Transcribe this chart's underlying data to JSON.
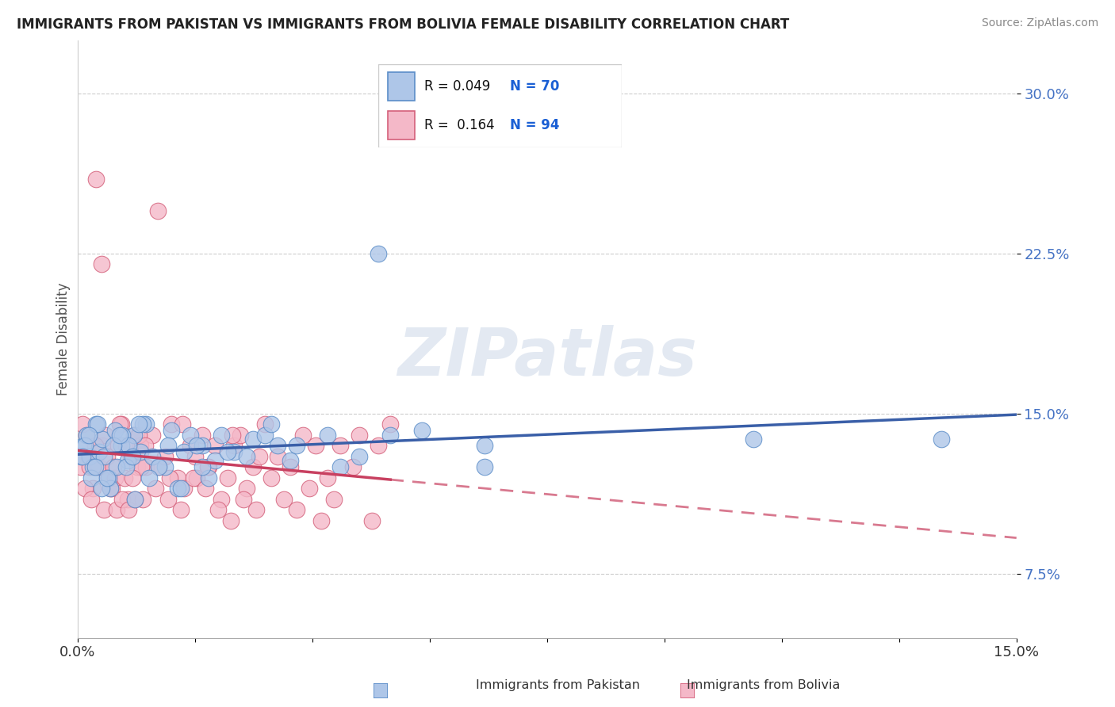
{
  "title": "IMMIGRANTS FROM PAKISTAN VS IMMIGRANTS FROM BOLIVIA FEMALE DISABILITY CORRELATION CHART",
  "source": "Source: ZipAtlas.com",
  "ylabel": "Female Disability",
  "y_ticks": [
    7.5,
    15.0,
    22.5,
    30.0
  ],
  "xlim": [
    0.0,
    15.0
  ],
  "ylim": [
    4.5,
    32.5
  ],
  "legend_label_1": "Immigrants from Pakistan",
  "legend_label_2": "Immigrants from Bolivia",
  "R1": 0.049,
  "N1": 70,
  "R2": 0.164,
  "N2": 94,
  "color_pakistan": "#aec6e8",
  "color_bolivia": "#f4b8c8",
  "edge_color_pakistan": "#5b8dc8",
  "edge_color_bolivia": "#d4607a",
  "trend_color_pakistan": "#3a5fa8",
  "trend_color_bolivia": "#c84060",
  "watermark": "ZIPatlas",
  "pakistan_x": [
    0.05,
    0.1,
    0.15,
    0.2,
    0.25,
    0.3,
    0.35,
    0.4,
    0.5,
    0.6,
    0.7,
    0.8,
    0.9,
    1.0,
    1.1,
    1.2,
    1.4,
    1.5,
    1.6,
    1.8,
    2.0,
    2.2,
    2.5,
    2.8,
    3.0,
    3.5,
    4.0,
    4.5,
    5.5,
    6.5,
    0.12,
    0.22,
    0.32,
    0.42,
    0.52,
    0.62,
    0.72,
    0.82,
    0.92,
    1.05,
    1.3,
    1.7,
    1.9,
    2.1,
    2.3,
    2.7,
    3.1,
    3.4,
    4.2,
    5.0,
    0.08,
    0.18,
    0.28,
    0.38,
    0.48,
    0.58,
    0.68,
    0.78,
    0.88,
    0.98,
    1.15,
    1.45,
    1.65,
    2.0,
    2.4,
    3.2,
    10.8,
    6.5,
    13.8,
    4.8
  ],
  "pakistan_y": [
    13.0,
    13.5,
    14.0,
    13.0,
    12.5,
    14.5,
    13.2,
    13.8,
    12.0,
    14.2,
    13.5,
    12.8,
    14.0,
    13.2,
    14.5,
    13.0,
    12.5,
    14.2,
    11.5,
    14.0,
    13.5,
    12.8,
    13.2,
    13.8,
    14.0,
    13.5,
    14.0,
    13.0,
    14.2,
    12.5,
    13.5,
    12.0,
    14.5,
    13.0,
    11.5,
    12.5,
    14.0,
    13.5,
    11.0,
    14.5,
    12.5,
    13.2,
    13.5,
    12.0,
    14.0,
    13.0,
    14.5,
    12.8,
    12.5,
    14.0,
    13.0,
    14.0,
    12.5,
    11.5,
    12.0,
    13.5,
    14.0,
    12.5,
    13.0,
    14.5,
    12.0,
    13.5,
    11.5,
    12.5,
    13.2,
    13.5,
    13.8,
    13.5,
    13.8,
    22.5
  ],
  "bolivia_x": [
    0.05,
    0.1,
    0.15,
    0.2,
    0.25,
    0.3,
    0.35,
    0.4,
    0.45,
    0.5,
    0.55,
    0.6,
    0.65,
    0.7,
    0.75,
    0.8,
    0.85,
    0.9,
    0.95,
    1.0,
    1.05,
    1.1,
    1.2,
    1.3,
    1.4,
    1.5,
    1.6,
    1.7,
    1.8,
    1.9,
    2.0,
    2.1,
    2.2,
    2.3,
    2.4,
    2.5,
    2.6,
    2.7,
    2.8,
    2.9,
    3.0,
    3.2,
    3.4,
    3.6,
    3.8,
    4.0,
    4.2,
    4.5,
    4.8,
    5.0,
    0.12,
    0.22,
    0.32,
    0.42,
    0.52,
    0.62,
    0.72,
    0.82,
    0.92,
    1.02,
    1.25,
    1.45,
    1.65,
    1.85,
    2.05,
    2.25,
    2.45,
    2.65,
    2.85,
    3.1,
    3.3,
    3.5,
    3.7,
    3.9,
    4.1,
    4.4,
    4.7,
    0.08,
    0.18,
    0.28,
    0.38,
    0.48,
    0.58,
    0.68,
    0.78,
    0.88,
    0.98,
    1.08,
    1.28,
    1.48,
    1.68,
    1.88,
    2.08,
    2.48
  ],
  "bolivia_y": [
    12.5,
    13.0,
    14.0,
    12.5,
    11.5,
    26.0,
    12.5,
    13.5,
    14.0,
    12.0,
    11.5,
    12.0,
    13.5,
    14.5,
    12.0,
    11.0,
    13.0,
    14.0,
    12.5,
    13.5,
    11.0,
    12.5,
    14.0,
    12.5,
    13.0,
    14.5,
    12.0,
    11.5,
    13.5,
    12.0,
    14.0,
    12.5,
    13.5,
    11.0,
    12.0,
    13.5,
    14.0,
    11.5,
    12.5,
    13.0,
    14.5,
    13.0,
    12.5,
    14.0,
    13.5,
    12.0,
    13.5,
    14.0,
    13.5,
    14.5,
    11.5,
    11.0,
    12.5,
    10.5,
    11.5,
    10.5,
    11.0,
    10.5,
    11.0,
    12.5,
    11.5,
    11.0,
    10.5,
    12.0,
    11.5,
    10.5,
    10.0,
    11.0,
    10.5,
    12.0,
    11.0,
    10.5,
    11.5,
    10.0,
    11.0,
    12.5,
    10.0,
    14.5,
    13.0,
    13.5,
    22.0,
    13.0,
    12.5,
    14.5,
    13.5,
    12.0,
    14.0,
    13.5,
    24.5,
    12.0,
    14.5,
    13.0,
    12.5,
    14.0
  ],
  "x_tick_positions": [
    0,
    1.875,
    3.75,
    5.625,
    7.5,
    9.375,
    11.25,
    13.125,
    15.0
  ]
}
